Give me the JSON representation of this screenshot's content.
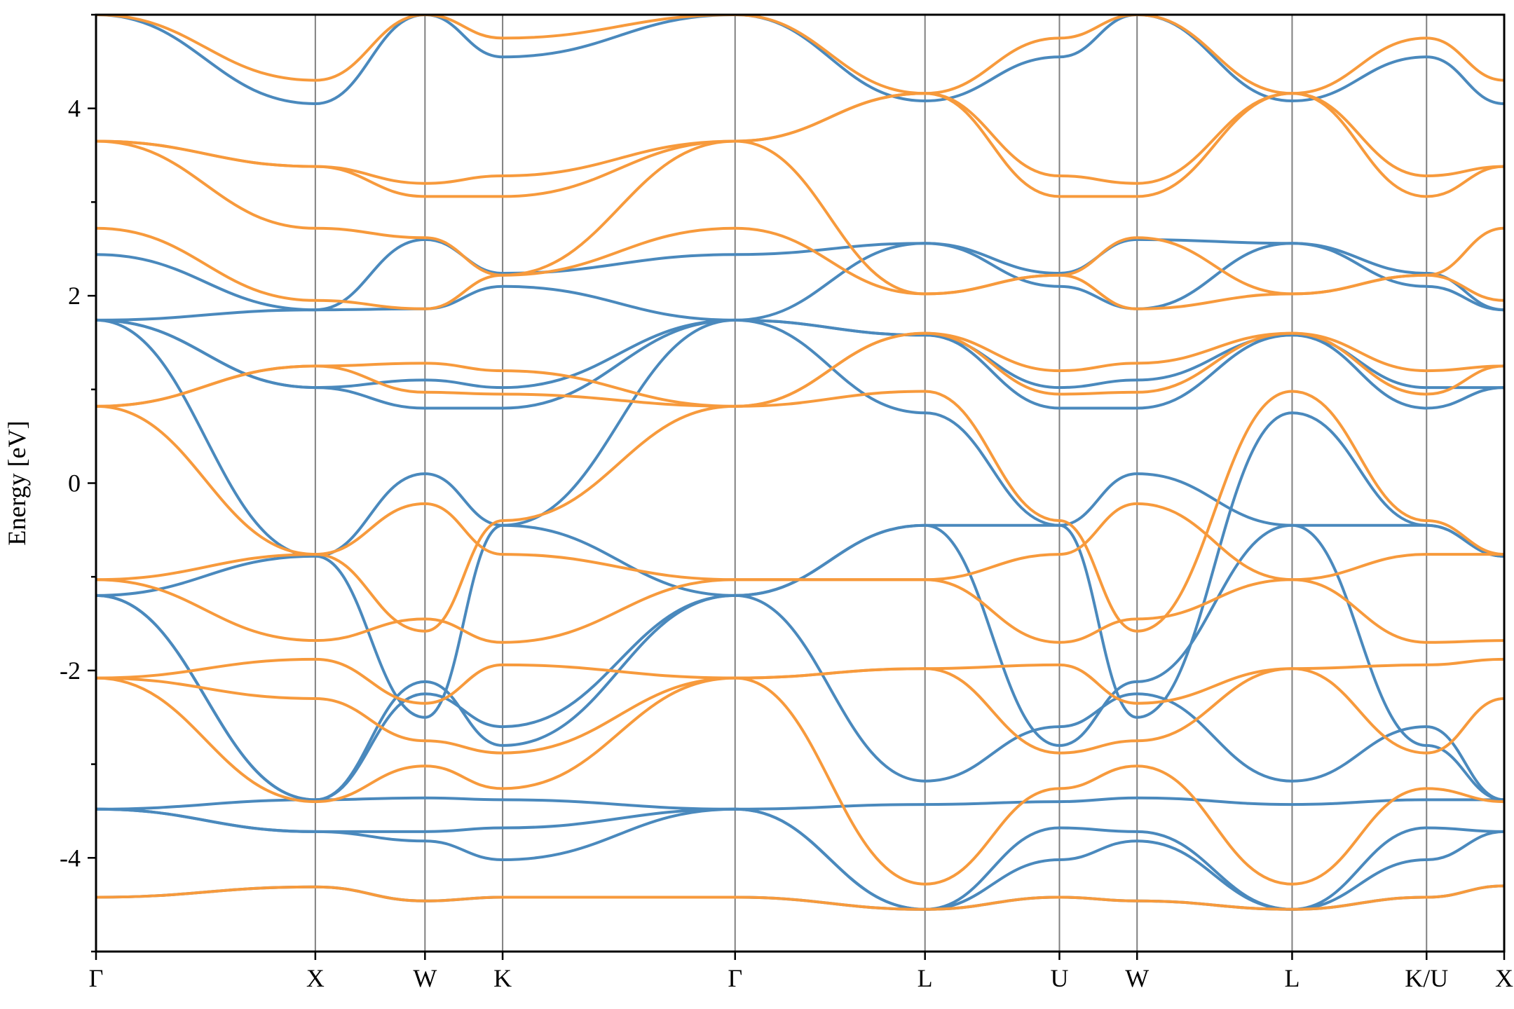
{
  "chart_data": {
    "type": "line",
    "title": "",
    "xlabel": "",
    "ylabel": "Energy [eV]",
    "ylim": [
      -5,
      5
    ],
    "yticks": [
      -4,
      -2,
      0,
      2,
      4
    ],
    "yticklabels": [
      "-4",
      "-2",
      "0",
      "2",
      "4"
    ],
    "kpoints": [
      {
        "label": "Γ",
        "x": 0.0
      },
      {
        "label": "X",
        "x": 1.0
      },
      {
        "label": "W",
        "x": 1.5
      },
      {
        "label": "K",
        "x": 1.854
      },
      {
        "label": "Γ",
        "x": 2.914
      },
      {
        "label": "L",
        "x": 3.78
      },
      {
        "label": "U",
        "x": 4.393
      },
      {
        "label": "W",
        "x": 4.747
      },
      {
        "label": "L",
        "x": 5.454
      },
      {
        "label": "K/U",
        "x": 6.067
      },
      {
        "label": "X",
        "x": 6.421
      }
    ],
    "colors": {
      "series_1": "#4a89bd",
      "series_2": "#f79a3c"
    },
    "series": [
      {
        "values": [
          [
            -4.42,
            -4.31,
            -4.46,
            -4.42,
            -4.42,
            -4.55,
            -4.42,
            -4.46,
            -4.55,
            -4.42,
            -4.3
          ],
          [
            -3.48,
            -3.38,
            -3.36,
            -3.38,
            -3.48,
            -3.43,
            -3.4,
            -3.36,
            -3.43,
            -3.38,
            -3.38
          ],
          [
            -3.48,
            -3.72,
            -3.82,
            -4.02,
            -3.48,
            -4.55,
            -4.02,
            -3.82,
            -4.55,
            -4.02,
            -3.72
          ],
          [
            -3.48,
            -3.72,
            -3.72,
            -3.68,
            -3.48,
            -4.55,
            -3.68,
            -3.72,
            -4.55,
            -3.68,
            -3.72
          ],
          [
            -1.2,
            -3.38,
            -2.25,
            -2.6,
            -1.2,
            -3.18,
            -2.6,
            -2.25,
            -3.18,
            -2.6,
            -3.38
          ],
          [
            -1.2,
            -3.38,
            -2.12,
            -2.8,
            -1.2,
            -0.45,
            -2.8,
            -2.12,
            -0.45,
            -2.8,
            -3.38
          ],
          [
            -1.2,
            -0.78,
            0.1,
            -0.45,
            -1.2,
            -0.45,
            -0.45,
            0.1,
            -0.45,
            -0.45,
            -0.78
          ],
          [
            1.74,
            -0.78,
            -2.5,
            -0.45,
            1.74,
            0.75,
            -0.45,
            -2.5,
            0.75,
            -0.45,
            -0.78
          ],
          [
            1.74,
            1.02,
            0.8,
            0.8,
            1.74,
            1.58,
            0.8,
            0.8,
            1.58,
            0.8,
            1.02
          ],
          [
            1.74,
            1.02,
            1.1,
            1.02,
            1.74,
            1.58,
            1.02,
            1.1,
            1.58,
            1.02,
            1.02
          ],
          [
            1.74,
            1.85,
            1.86,
            2.1,
            1.74,
            2.56,
            2.1,
            1.86,
            2.56,
            2.1,
            1.85
          ],
          [
            2.44,
            1.85,
            2.6,
            2.24,
            2.44,
            2.56,
            2.24,
            2.6,
            2.56,
            2.24,
            1.85
          ],
          [
            5.0,
            4.05,
            5.0,
            4.55,
            5.0,
            4.08,
            4.55,
            5.0,
            4.08,
            4.55,
            4.05
          ]
        ]
      },
      {
        "values": [
          [
            -4.42,
            -4.31,
            -4.46,
            -4.42,
            -4.42,
            -4.55,
            -4.42,
            -4.46,
            -4.55,
            -4.42,
            -4.3
          ],
          [
            -2.08,
            -3.4,
            -3.02,
            -3.26,
            -2.08,
            -4.28,
            -3.26,
            -3.02,
            -4.28,
            -3.26,
            -3.4
          ],
          [
            -2.08,
            -2.3,
            -2.75,
            -2.88,
            -2.08,
            -1.98,
            -2.88,
            -2.75,
            -1.98,
            -2.88,
            -2.3
          ],
          [
            -2.08,
            -1.88,
            -2.35,
            -1.94,
            -2.08,
            -1.98,
            -1.94,
            -2.35,
            -1.98,
            -1.94,
            -1.88
          ],
          [
            -1.03,
            -1.68,
            -1.45,
            -1.7,
            -1.03,
            -1.03,
            -1.7,
            -1.45,
            -1.03,
            -1.7,
            -1.68
          ],
          [
            -1.03,
            -0.76,
            -0.22,
            -0.76,
            -1.03,
            -1.03,
            -0.76,
            -0.22,
            -1.03,
            -0.76,
            -0.76
          ],
          [
            0.82,
            -0.76,
            -1.58,
            -0.4,
            0.82,
            0.98,
            -0.4,
            -1.58,
            0.98,
            -0.4,
            -0.76
          ],
          [
            0.82,
            1.25,
            0.97,
            0.95,
            0.82,
            1.6,
            0.95,
            0.97,
            1.6,
            0.95,
            1.25
          ],
          [
            0.82,
            1.25,
            1.28,
            1.2,
            0.82,
            1.6,
            1.2,
            1.28,
            1.6,
            1.2,
            1.25
          ],
          [
            2.72,
            1.95,
            1.86,
            2.22,
            2.72,
            2.02,
            2.22,
            1.86,
            2.02,
            2.22,
            1.95
          ],
          [
            3.65,
            2.72,
            2.62,
            2.22,
            3.65,
            2.02,
            2.22,
            2.62,
            2.02,
            2.22,
            2.72
          ],
          [
            3.65,
            3.38,
            3.2,
            3.28,
            3.65,
            4.16,
            3.28,
            3.2,
            4.16,
            3.28,
            3.38
          ],
          [
            3.65,
            3.38,
            3.06,
            3.06,
            3.65,
            4.16,
            3.06,
            3.06,
            4.16,
            3.06,
            3.38
          ],
          [
            5.0,
            4.3,
            5.0,
            4.75,
            5.0,
            4.16,
            4.75,
            5.0,
            4.16,
            4.75,
            4.3
          ]
        ]
      }
    ]
  }
}
